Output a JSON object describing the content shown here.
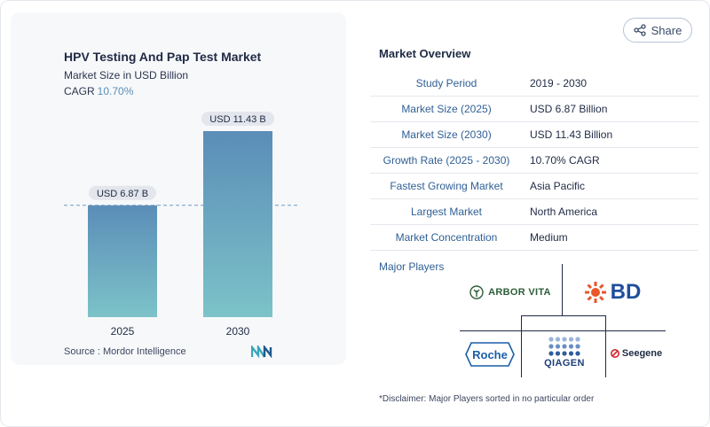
{
  "chart": {
    "title": "HPV Testing And Pap Test Market",
    "subtitle": "Market Size in USD Billion",
    "cagr_label": "CAGR",
    "cagr_value": "10.70%",
    "source": "Source :  Mordor Intelligence"
  },
  "chart_data": {
    "type": "bar",
    "title": "HPV Testing And Pap Test Market",
    "subtitle": "Market Size in USD Billion",
    "categories": [
      "2025",
      "2030"
    ],
    "values": [
      6.87,
      11.43
    ],
    "data_labels": [
      "USD 6.87 B",
      "USD 11.43 B"
    ],
    "ylim": [
      0,
      11.43
    ],
    "grid": false,
    "reference_line": 6.87,
    "colors": {
      "bar_top": "#5b8db8",
      "bar_bottom": "#7cc3c8"
    }
  },
  "share": {
    "label": "Share",
    "icon": "share-icon"
  },
  "overview": {
    "title": "Market Overview",
    "rows": [
      {
        "key": "Study Period",
        "value": "2019 - 2030"
      },
      {
        "key": "Market Size (2025)",
        "value": "USD 6.87 Billion"
      },
      {
        "key": "Market Size (2030)",
        "value": "USD 11.43 Billion"
      },
      {
        "key": "Growth Rate (2025 - 2030)",
        "value": "10.70% CAGR"
      },
      {
        "key": "Fastest Growing Market",
        "value": "Asia Pacific"
      },
      {
        "key": "Largest Market",
        "value": "North America"
      },
      {
        "key": "Market Concentration",
        "value": "Medium"
      }
    ]
  },
  "players": {
    "title": "Major Players",
    "logos": [
      "ARBOR VITA",
      "BD",
      "Roche",
      "QIAGEN",
      "Seegene"
    ]
  },
  "disclaimer": "*Disclaimer: Major Players sorted in no particular order"
}
